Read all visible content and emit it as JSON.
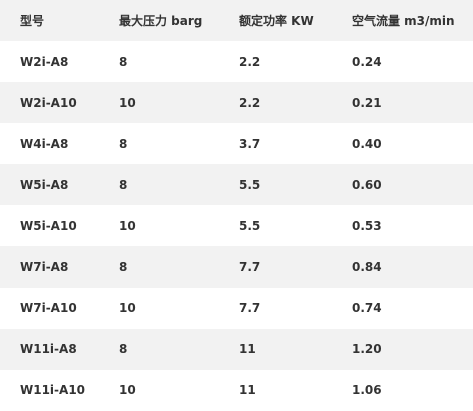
{
  "header": {
    "model": "型号",
    "pressure": "最大压力 barg",
    "power": "额定功率 KW",
    "flow": "空气流量 m3/min"
  },
  "rows": [
    {
      "model": "W2i-A8",
      "pressure": "8",
      "power": "2.2",
      "flow": "0.24"
    },
    {
      "model": "W2i-A10",
      "pressure": "10",
      "power": "2.2",
      "flow": "0.21"
    },
    {
      "model": "W4i-A8",
      "pressure": "8",
      "power": "3.7",
      "flow": "0.40"
    },
    {
      "model": "W5i-A8",
      "pressure": "8",
      "power": "5.5",
      "flow": "0.60"
    },
    {
      "model": "W5i-A10",
      "pressure": "10",
      "power": "5.5",
      "flow": "0.53"
    },
    {
      "model": "W7i-A8",
      "pressure": "8",
      "power": "7.7",
      "flow": "0.84"
    },
    {
      "model": "W7i-A10",
      "pressure": "10",
      "power": "7.7",
      "flow": "0.74"
    },
    {
      "model": "W11i-A8",
      "pressure": "8",
      "power": "11",
      "flow": "1.20"
    },
    {
      "model": "W11i-A10",
      "pressure": "10",
      "power": "11",
      "flow": "1.06"
    }
  ],
  "colors": {
    "header_bg": "#f2f2f2",
    "stripe_bg": "#f2f2f2",
    "text": "#333333"
  }
}
